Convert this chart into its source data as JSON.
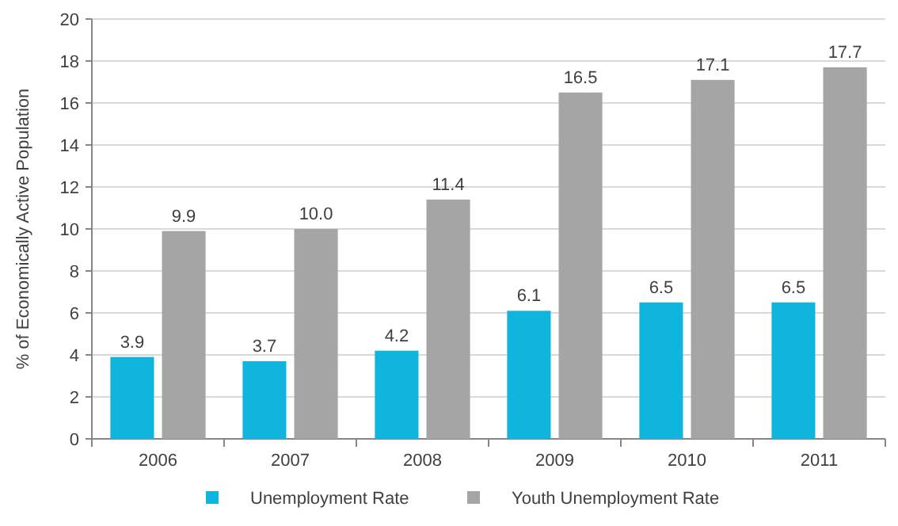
{
  "chart_data": {
    "type": "bar",
    "ylabel": "% of Economically Active Population",
    "categories": [
      "2006",
      "2007",
      "2008",
      "2009",
      "2010",
      "2011"
    ],
    "series": [
      {
        "name": "Unemployment Rate",
        "color": "#0fb5dc",
        "values": [
          3.9,
          3.7,
          4.2,
          6.1,
          6.5,
          6.5
        ],
        "value_labels": [
          "3.9",
          "3.7",
          "4.2",
          "6.1",
          "6.5",
          "6.5"
        ]
      },
      {
        "name": "Youth Unemployment Rate",
        "color": "#a5a5a5",
        "values": [
          9.9,
          10.0,
          11.4,
          16.5,
          17.1,
          17.7
        ],
        "value_labels": [
          "9.9",
          "10.0",
          "11.4",
          "16.5",
          "17.1",
          "17.7"
        ]
      }
    ],
    "ylim": [
      0,
      20
    ],
    "yticks": [
      0,
      2,
      4,
      6,
      8,
      10,
      12,
      14,
      16,
      18,
      20
    ],
    "grid": "y",
    "legend": "bottom"
  }
}
